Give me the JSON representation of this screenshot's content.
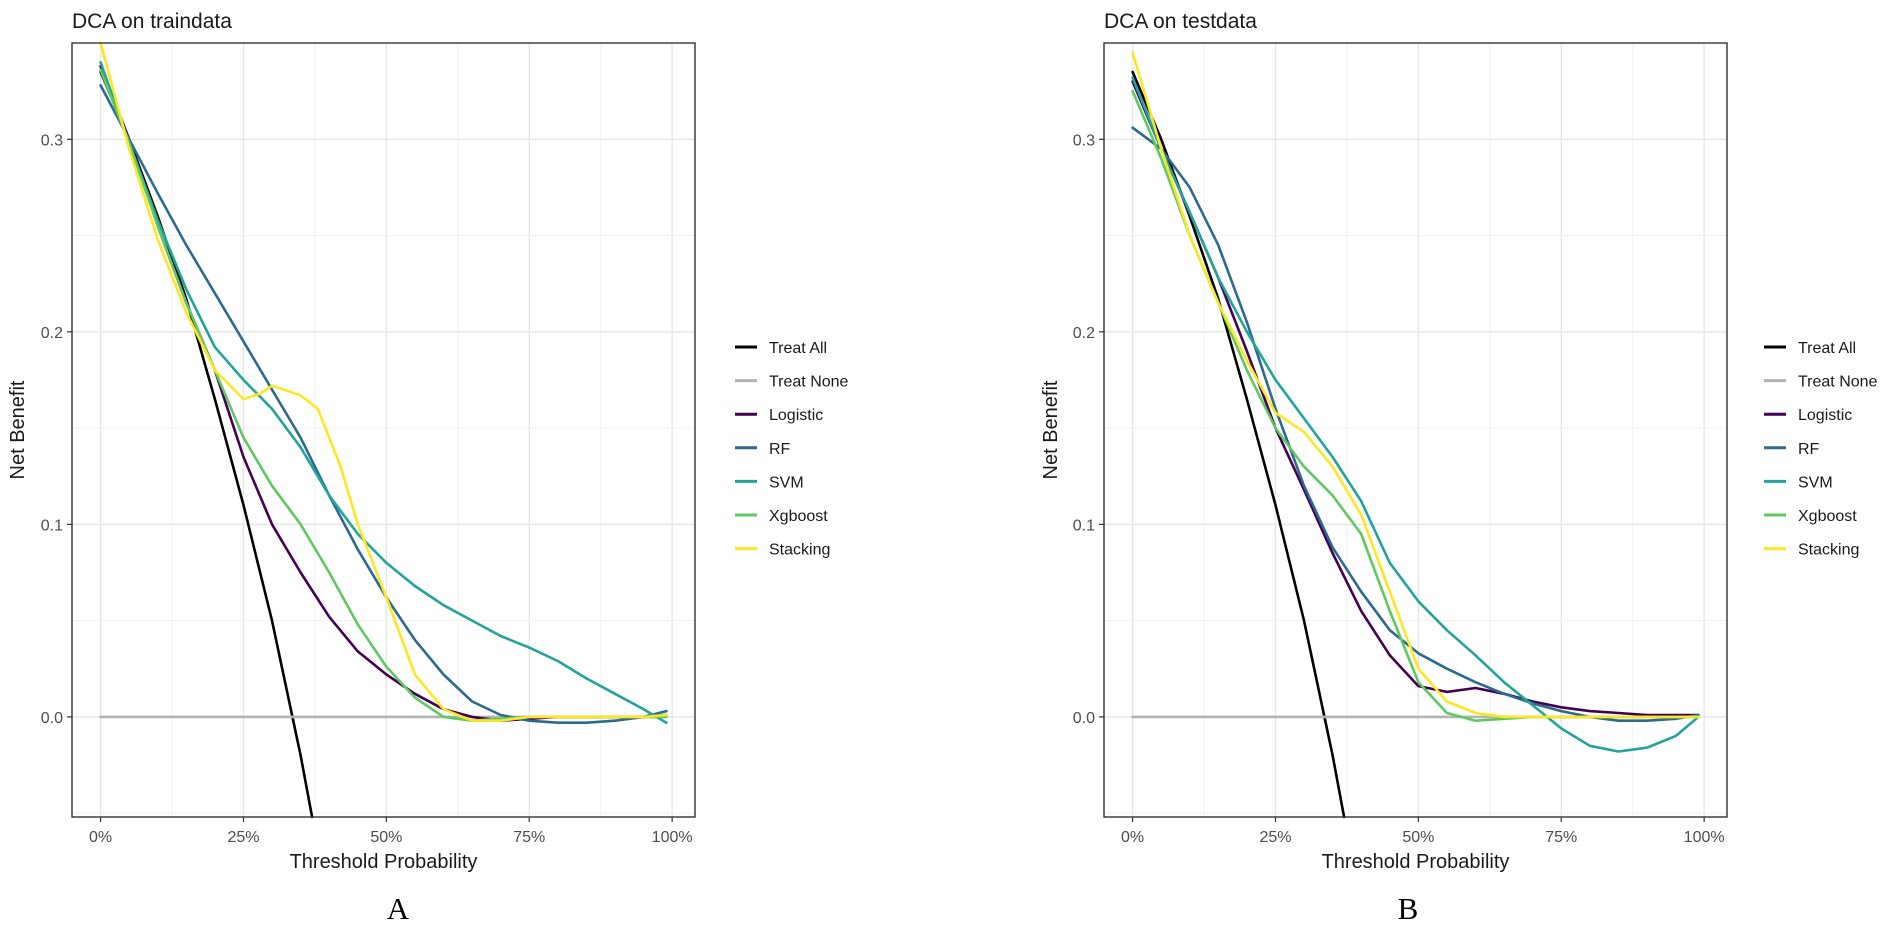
{
  "figure": {
    "panel_labels": [
      "A",
      "B"
    ]
  },
  "series_colors": {
    "Treat All": "#000000",
    "Treat None": "#b3b3b3",
    "Logistic": "#440154",
    "RF": "#2c6a8e",
    "SVM": "#22a39b",
    "Xgboost": "#5ec962",
    "Stacking": "#fde725"
  },
  "chart_data": [
    {
      "type": "line",
      "title": "DCA on traindata",
      "xlabel": "Threshold Probability",
      "ylabel": "Net Benefit",
      "xlim": [
        -0.05,
        1.04
      ],
      "ylim": [
        -0.052,
        0.35
      ],
      "xticks": [
        0,
        0.25,
        0.5,
        0.75,
        1.0
      ],
      "xtick_labels": [
        "0%",
        "25%",
        "50%",
        "75%",
        "100%"
      ],
      "yticks": [
        0.0,
        0.1,
        0.2,
        0.3
      ],
      "ytick_labels": [
        "0.0",
        "0.1",
        "0.2",
        "0.3"
      ],
      "legend_position": "right",
      "series": [
        {
          "name": "Treat All",
          "x": [
            0.0,
            0.05,
            0.1,
            0.15,
            0.2,
            0.25,
            0.3,
            0.35,
            0.37
          ],
          "y": [
            0.335,
            0.3,
            0.26,
            0.217,
            0.165,
            0.11,
            0.05,
            -0.02,
            -0.052
          ]
        },
        {
          "name": "Treat None",
          "x": [
            0.0,
            0.99
          ],
          "y": [
            0.0,
            0.0
          ]
        },
        {
          "name": "Logistic",
          "x": [
            0.0,
            0.05,
            0.1,
            0.15,
            0.2,
            0.25,
            0.3,
            0.35,
            0.4,
            0.45,
            0.5,
            0.55,
            0.6,
            0.65,
            0.7,
            0.75,
            0.8,
            0.85,
            0.9,
            0.95,
            0.99
          ],
          "y": [
            0.338,
            0.3,
            0.255,
            0.215,
            0.18,
            0.135,
            0.1,
            0.075,
            0.052,
            0.034,
            0.022,
            0.012,
            0.004,
            0.0,
            -0.002,
            -0.001,
            0.0,
            0.0,
            0.0,
            0.0,
            0.001
          ]
        },
        {
          "name": "RF",
          "x": [
            0.0,
            0.05,
            0.1,
            0.15,
            0.2,
            0.25,
            0.3,
            0.35,
            0.4,
            0.45,
            0.5,
            0.55,
            0.6,
            0.65,
            0.7,
            0.75,
            0.8,
            0.85,
            0.9,
            0.95,
            0.99
          ],
          "y": [
            0.328,
            0.3,
            0.272,
            0.245,
            0.22,
            0.195,
            0.17,
            0.145,
            0.115,
            0.087,
            0.062,
            0.04,
            0.022,
            0.008,
            0.001,
            -0.002,
            -0.003,
            -0.003,
            -0.002,
            0.0,
            0.003
          ]
        },
        {
          "name": "SVM",
          "x": [
            0.0,
            0.05,
            0.1,
            0.15,
            0.2,
            0.25,
            0.3,
            0.35,
            0.4,
            0.45,
            0.5,
            0.55,
            0.6,
            0.65,
            0.7,
            0.75,
            0.8,
            0.85,
            0.9,
            0.95,
            0.99
          ],
          "y": [
            0.34,
            0.298,
            0.258,
            0.222,
            0.192,
            0.175,
            0.16,
            0.14,
            0.115,
            0.095,
            0.08,
            0.068,
            0.058,
            0.05,
            0.042,
            0.036,
            0.029,
            0.02,
            0.012,
            0.004,
            -0.003
          ]
        },
        {
          "name": "Xgboost",
          "x": [
            0.0,
            0.05,
            0.1,
            0.15,
            0.2,
            0.25,
            0.3,
            0.35,
            0.4,
            0.45,
            0.5,
            0.55,
            0.6,
            0.65,
            0.7,
            0.75,
            0.8,
            0.85,
            0.9,
            0.95,
            0.99
          ],
          "y": [
            0.336,
            0.298,
            0.255,
            0.215,
            0.18,
            0.145,
            0.12,
            0.1,
            0.075,
            0.048,
            0.026,
            0.01,
            0.0,
            -0.002,
            -0.001,
            0.0,
            0.0,
            0.0,
            0.0,
            0.0,
            0.0
          ]
        },
        {
          "name": "Stacking",
          "x": [
            0.0,
            0.05,
            0.1,
            0.15,
            0.2,
            0.25,
            0.28,
            0.3,
            0.35,
            0.38,
            0.42,
            0.45,
            0.5,
            0.55,
            0.6,
            0.65,
            0.7,
            0.75,
            0.8,
            0.85,
            0.9,
            0.95,
            0.99
          ],
          "y": [
            0.35,
            0.295,
            0.248,
            0.21,
            0.18,
            0.165,
            0.168,
            0.172,
            0.167,
            0.16,
            0.13,
            0.1,
            0.062,
            0.022,
            0.004,
            -0.002,
            -0.002,
            0.0,
            0.0,
            0.0,
            0.0,
            0.0,
            0.001
          ]
        }
      ]
    },
    {
      "type": "line",
      "title": "DCA on testdata",
      "xlabel": "Threshold Probability",
      "ylabel": "Net Benefit",
      "xlim": [
        -0.05,
        1.04
      ],
      "ylim": [
        -0.052,
        0.35
      ],
      "xticks": [
        0,
        0.25,
        0.5,
        0.75,
        1.0
      ],
      "xtick_labels": [
        "0%",
        "25%",
        "50%",
        "75%",
        "100%"
      ],
      "yticks": [
        0.0,
        0.1,
        0.2,
        0.3
      ],
      "ytick_labels": [
        "0.0",
        "0.1",
        "0.2",
        "0.3"
      ],
      "legend_position": "right",
      "series": [
        {
          "name": "Treat All",
          "x": [
            0.0,
            0.05,
            0.1,
            0.15,
            0.2,
            0.25,
            0.3,
            0.35,
            0.37
          ],
          "y": [
            0.335,
            0.3,
            0.26,
            0.217,
            0.165,
            0.11,
            0.05,
            -0.02,
            -0.052
          ]
        },
        {
          "name": "Treat None",
          "x": [
            0.0,
            0.99
          ],
          "y": [
            0.0,
            0.0
          ]
        },
        {
          "name": "Logistic",
          "x": [
            0.0,
            0.05,
            0.1,
            0.15,
            0.2,
            0.25,
            0.3,
            0.35,
            0.4,
            0.45,
            0.5,
            0.55,
            0.6,
            0.65,
            0.7,
            0.75,
            0.8,
            0.85,
            0.9,
            0.95,
            0.99
          ],
          "y": [
            0.33,
            0.295,
            0.262,
            0.228,
            0.19,
            0.15,
            0.118,
            0.085,
            0.055,
            0.032,
            0.016,
            0.013,
            0.015,
            0.012,
            0.008,
            0.005,
            0.003,
            0.002,
            0.001,
            0.001,
            0.001
          ]
        },
        {
          "name": "RF",
          "x": [
            0.0,
            0.05,
            0.1,
            0.15,
            0.2,
            0.25,
            0.3,
            0.35,
            0.4,
            0.45,
            0.5,
            0.55,
            0.6,
            0.65,
            0.7,
            0.75,
            0.8,
            0.85,
            0.9,
            0.95,
            0.99
          ],
          "y": [
            0.306,
            0.295,
            0.275,
            0.245,
            0.205,
            0.16,
            0.12,
            0.088,
            0.065,
            0.045,
            0.033,
            0.025,
            0.018,
            0.012,
            0.007,
            0.003,
            0.0,
            -0.002,
            -0.002,
            -0.001,
            0.001
          ]
        },
        {
          "name": "SVM",
          "x": [
            0.0,
            0.05,
            0.1,
            0.15,
            0.2,
            0.25,
            0.3,
            0.35,
            0.4,
            0.45,
            0.5,
            0.55,
            0.6,
            0.65,
            0.7,
            0.75,
            0.8,
            0.85,
            0.9,
            0.95,
            0.99
          ],
          "y": [
            0.332,
            0.295,
            0.262,
            0.228,
            0.2,
            0.175,
            0.155,
            0.135,
            0.112,
            0.08,
            0.06,
            0.045,
            0.032,
            0.018,
            0.006,
            -0.006,
            -0.015,
            -0.018,
            -0.016,
            -0.01,
            0.0
          ]
        },
        {
          "name": "Xgboost",
          "x": [
            0.0,
            0.05,
            0.1,
            0.15,
            0.2,
            0.25,
            0.3,
            0.35,
            0.4,
            0.45,
            0.5,
            0.55,
            0.6,
            0.65,
            0.7,
            0.75,
            0.8,
            0.85,
            0.9,
            0.95,
            0.99
          ],
          "y": [
            0.325,
            0.29,
            0.25,
            0.215,
            0.18,
            0.15,
            0.13,
            0.115,
            0.095,
            0.055,
            0.018,
            0.002,
            -0.002,
            -0.001,
            0.0,
            0.0,
            0.0,
            0.0,
            0.0,
            0.0,
            0.0
          ]
        },
        {
          "name": "Stacking",
          "x": [
            0.0,
            0.05,
            0.1,
            0.15,
            0.2,
            0.25,
            0.3,
            0.35,
            0.4,
            0.45,
            0.5,
            0.55,
            0.6,
            0.65,
            0.7,
            0.75,
            0.8,
            0.85,
            0.9,
            0.95,
            0.99
          ],
          "y": [
            0.345,
            0.295,
            0.25,
            0.215,
            0.185,
            0.158,
            0.148,
            0.13,
            0.105,
            0.065,
            0.025,
            0.008,
            0.002,
            0.0,
            0.0,
            0.0,
            0.0,
            0.0,
            0.0,
            0.0,
            0.0
          ]
        }
      ]
    }
  ]
}
